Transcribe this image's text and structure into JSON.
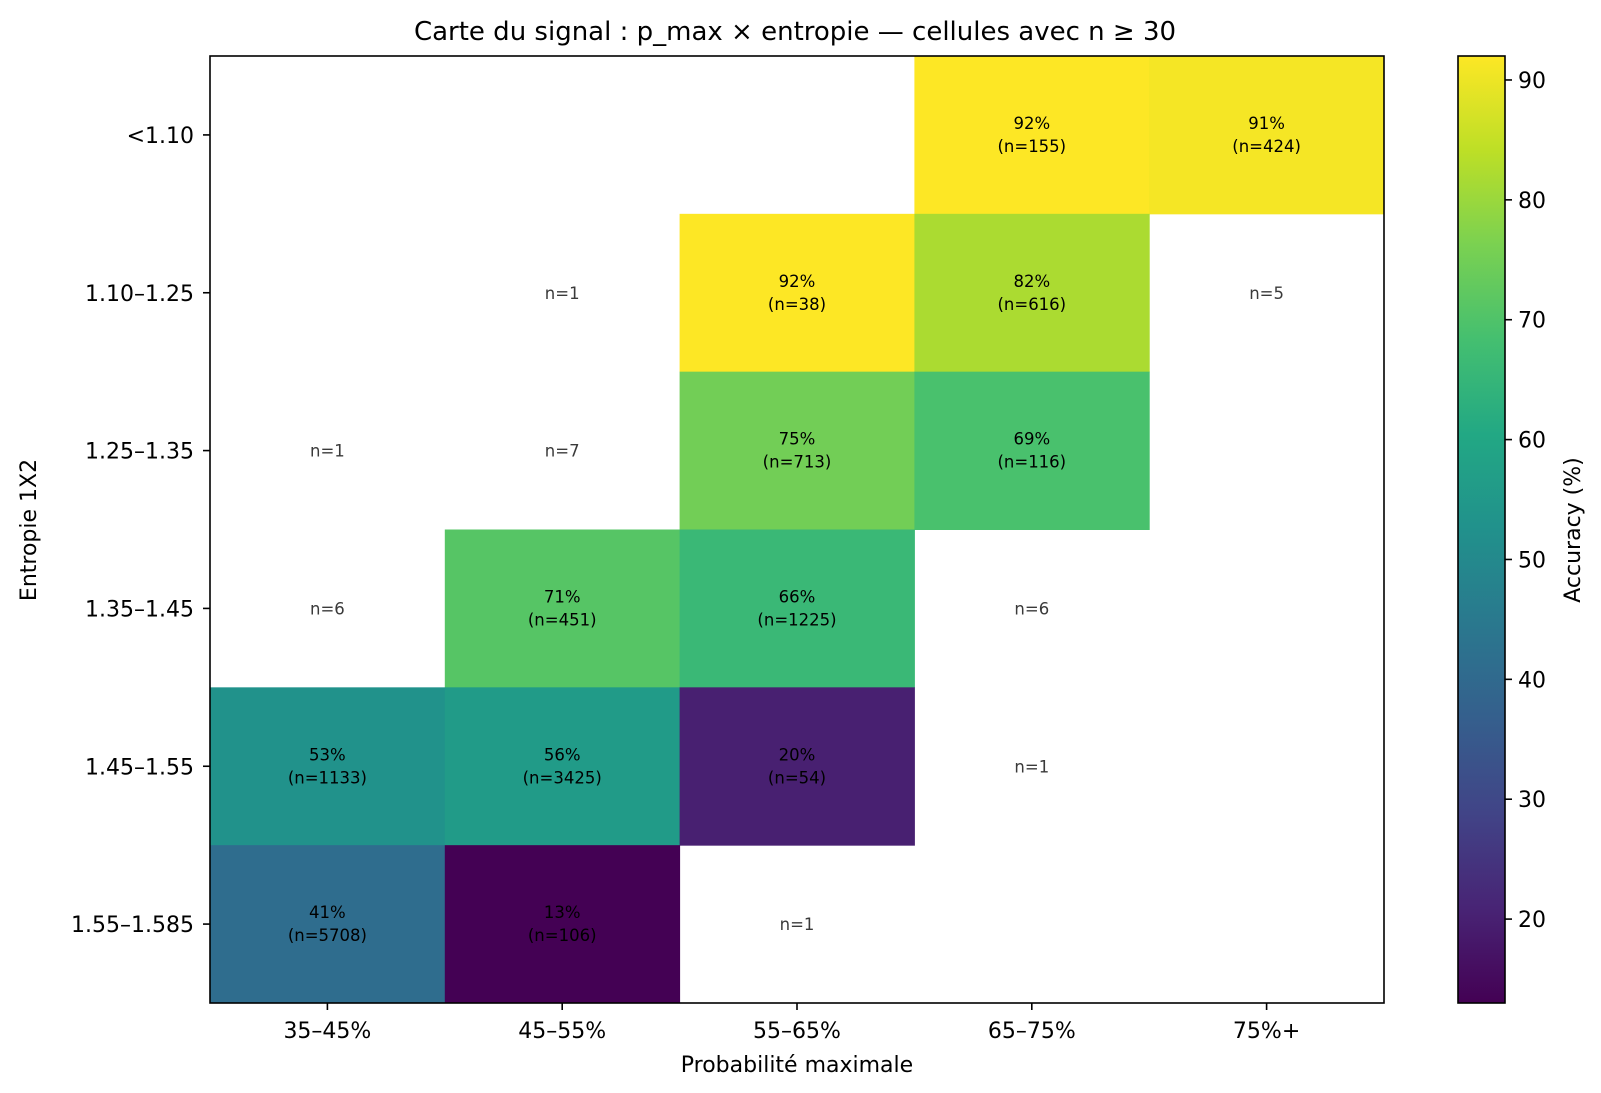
{
  "chart_data": {
    "type": "heatmap",
    "title": "Carte du signal : p_max × entropie — cellules avec n ≥ 30",
    "xlabel": "Probabilité maximale",
    "ylabel": "Entropie 1X2",
    "x_categories": [
      "35–45%",
      "45–55%",
      "55–65%",
      "65–75%",
      "75%+"
    ],
    "y_categories": [
      "<1.10",
      "1.10–1.25",
      "1.25–1.35",
      "1.35–1.45",
      "1.45–1.55",
      "1.55–1.585"
    ],
    "min_n": 30,
    "cells": [
      {
        "row": 0,
        "col": 3,
        "accuracy": 92,
        "n": 155
      },
      {
        "row": 0,
        "col": 4,
        "accuracy": 91,
        "n": 424
      },
      {
        "row": 1,
        "col": 1,
        "n": 1
      },
      {
        "row": 1,
        "col": 2,
        "accuracy": 92,
        "n": 38
      },
      {
        "row": 1,
        "col": 3,
        "accuracy": 82,
        "n": 616
      },
      {
        "row": 1,
        "col": 4,
        "n": 5
      },
      {
        "row": 2,
        "col": 0,
        "n": 1
      },
      {
        "row": 2,
        "col": 1,
        "n": 7
      },
      {
        "row": 2,
        "col": 2,
        "accuracy": 75,
        "n": 713
      },
      {
        "row": 2,
        "col": 3,
        "accuracy": 69,
        "n": 116
      },
      {
        "row": 3,
        "col": 0,
        "n": 6
      },
      {
        "row": 3,
        "col": 1,
        "accuracy": 71,
        "n": 451
      },
      {
        "row": 3,
        "col": 2,
        "accuracy": 66,
        "n": 1225
      },
      {
        "row": 3,
        "col": 3,
        "n": 6
      },
      {
        "row": 4,
        "col": 0,
        "accuracy": 53,
        "n": 1133
      },
      {
        "row": 4,
        "col": 1,
        "accuracy": 56,
        "n": 3425
      },
      {
        "row": 4,
        "col": 2,
        "accuracy": 20,
        "n": 54
      },
      {
        "row": 4,
        "col": 3,
        "n": 1
      },
      {
        "row": 5,
        "col": 0,
        "accuracy": 41,
        "n": 5708
      },
      {
        "row": 5,
        "col": 1,
        "accuracy": 13,
        "n": 106
      },
      {
        "row": 5,
        "col": 2,
        "n": 1
      }
    ],
    "colorbar": {
      "label": "Accuracy (%)",
      "colormap": "viridis",
      "range": [
        13,
        92
      ],
      "ticks": [
        20,
        30,
        40,
        50,
        60,
        70,
        80,
        90
      ]
    }
  }
}
